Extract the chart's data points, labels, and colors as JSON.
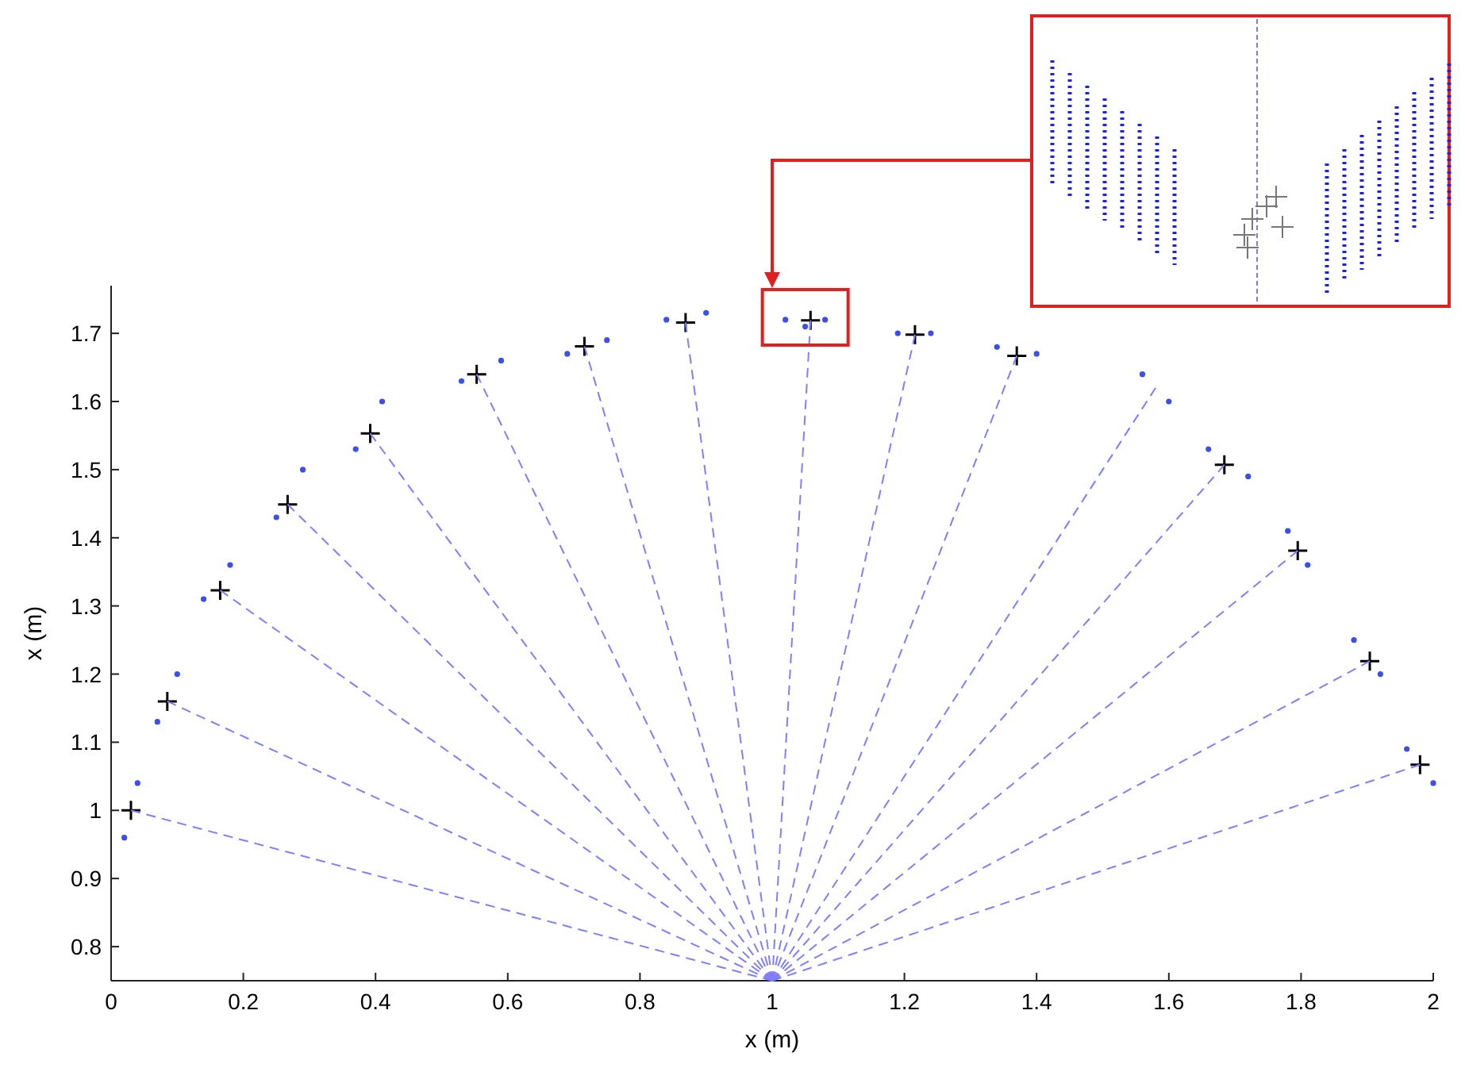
{
  "chart_data": {
    "type": "scatter",
    "xlabel": "x (m)",
    "ylabel": "x (m)",
    "xlim": [
      0,
      2
    ],
    "ylim": [
      0.75,
      1.77
    ],
    "xticks": [
      0,
      {
        "value": 0.2,
        "label": "0.2"
      },
      {
        "value": 0.4,
        "label": "0.4"
      },
      {
        "value": 0.6,
        "label": "0.6"
      },
      {
        "value": 0.8,
        "label": "0.8"
      },
      1,
      {
        "value": 1.2,
        "label": "1.2"
      },
      {
        "value": 1.4,
        "label": "1.4"
      },
      {
        "value": 1.6,
        "label": "1.6"
      },
      {
        "value": 1.8,
        "label": "1.8"
      },
      2
    ],
    "yticks": [
      {
        "value": 0.8,
        "label": "0.8"
      },
      {
        "value": 0.9,
        "label": "0.9"
      },
      1,
      {
        "value": 1.1,
        "label": "1.1"
      },
      {
        "value": 1.2,
        "label": "1.2"
      },
      {
        "value": 1.3,
        "label": "1.3"
      },
      {
        "value": 1.4,
        "label": "1.4"
      },
      {
        "value": 1.5,
        "label": "1.5"
      },
      {
        "value": 1.6,
        "label": "1.6"
      },
      {
        "value": 1.7,
        "label": "1.7"
      }
    ],
    "grid": false,
    "series": [
      {
        "type": "line",
        "line_style": "dashed",
        "marker": "none",
        "color": "#7f7fff",
        "x": [
          1,
          0.03
        ],
        "values": [
          0.75,
          1.0
        ]
      },
      {
        "type": "line",
        "line_style": "dashed",
        "marker": "none",
        "color": "#7f7fff",
        "x": [
          1,
          0.085
        ],
        "values": [
          0.75,
          1.16
        ]
      },
      {
        "type": "line",
        "line_style": "dashed",
        "marker": "none",
        "color": "#7f7fff",
        "x": [
          1,
          0.165
        ],
        "values": [
          0.75,
          1.323
        ]
      },
      {
        "type": "line",
        "line_style": "dashed",
        "marker": "none",
        "color": "#7f7fff",
        "x": [
          1,
          0.267
        ],
        "values": [
          0.75,
          1.449
        ]
      },
      {
        "type": "line",
        "line_style": "dashed",
        "marker": "none",
        "color": "#7f7fff",
        "x": [
          1,
          0.392
        ],
        "values": [
          0.75,
          1.553
        ]
      },
      {
        "type": "line",
        "line_style": "dashed",
        "marker": "none",
        "color": "#7f7fff",
        "x": [
          1,
          0.553
        ],
        "values": [
          0.75,
          1.64
        ]
      },
      {
        "type": "line",
        "line_style": "dashed",
        "marker": "none",
        "color": "#7f7fff",
        "x": [
          1,
          0.716
        ],
        "values": [
          0.75,
          1.681
        ]
      },
      {
        "type": "line",
        "line_style": "dashed",
        "marker": "none",
        "color": "#7f7fff",
        "x": [
          1,
          0.869
        ],
        "values": [
          0.75,
          1.716
        ]
      },
      {
        "type": "line",
        "line_style": "dashed",
        "marker": "none",
        "color": "#7f7fff",
        "x": [
          1,
          1.058
        ],
        "values": [
          0.75,
          1.719
        ]
      },
      {
        "type": "line",
        "line_style": "dashed",
        "marker": "none",
        "color": "#7f7fff",
        "x": [
          1,
          1.216
        ],
        "values": [
          0.75,
          1.698
        ]
      },
      {
        "type": "line",
        "line_style": "dashed",
        "marker": "none",
        "color": "#7f7fff",
        "x": [
          1,
          1.37
        ],
        "values": [
          0.75,
          1.667
        ]
      },
      {
        "type": "line",
        "line_style": "dashed",
        "marker": "none",
        "color": "#7f7fff",
        "x": [
          1,
          1.58
        ],
        "values": [
          0.75,
          1.62
        ]
      },
      {
        "type": "line",
        "line_style": "dashed",
        "marker": "none",
        "color": "#7f7fff",
        "x": [
          1,
          1.684
        ],
        "values": [
          0.75,
          1.507
        ]
      },
      {
        "type": "line",
        "line_style": "dashed",
        "marker": "none",
        "color": "#7f7fff",
        "x": [
          1,
          1.795
        ],
        "values": [
          0.75,
          1.381
        ]
      },
      {
        "type": "line",
        "line_style": "dashed",
        "marker": "none",
        "color": "#7f7fff",
        "x": [
          1,
          1.904
        ],
        "values": [
          0.75,
          1.219
        ]
      },
      {
        "type": "line",
        "line_style": "dashed",
        "marker": "none",
        "color": "#7f7fff",
        "x": [
          1,
          1.98
        ],
        "values": [
          0.75,
          1.067
        ]
      },
      {
        "marker": "circle",
        "color": "#3c50e6",
        "x": [
          0.02,
          0.04,
          0.07,
          0.1,
          0.14,
          0.18,
          0.25,
          0.29,
          0.37,
          0.41,
          0.53,
          0.59,
          0.69,
          0.75,
          0.84,
          0.9,
          1.02,
          1.05,
          1.08,
          1.19,
          1.24,
          1.34,
          1.4,
          1.56,
          1.6,
          1.66,
          1.72,
          1.78,
          1.81,
          1.88,
          1.92,
          1.96,
          2.0
        ],
        "values": [
          0.96,
          1.04,
          1.13,
          1.2,
          1.31,
          1.36,
          1.43,
          1.5,
          1.53,
          1.6,
          1.63,
          1.66,
          1.67,
          1.69,
          1.72,
          1.73,
          1.72,
          1.71,
          1.72,
          1.7,
          1.7,
          1.68,
          1.67,
          1.64,
          1.6,
          1.53,
          1.49,
          1.41,
          1.36,
          1.25,
          1.2,
          1.09,
          1.04
        ]
      },
      {
        "marker": "cross",
        "color": "#000000",
        "x": [
          0.03,
          0.085,
          0.165,
          0.267,
          0.392,
          0.553,
          0.716,
          0.869,
          1.058,
          1.216,
          1.37,
          1.684,
          1.795,
          1.904,
          1.98
        ],
        "values": [
          1.0,
          1.16,
          1.323,
          1.449,
          1.553,
          1.64,
          1.681,
          1.716,
          1.719,
          1.698,
          1.667,
          1.507,
          1.381,
          1.219,
          1.067
        ]
      }
    ]
  }
}
